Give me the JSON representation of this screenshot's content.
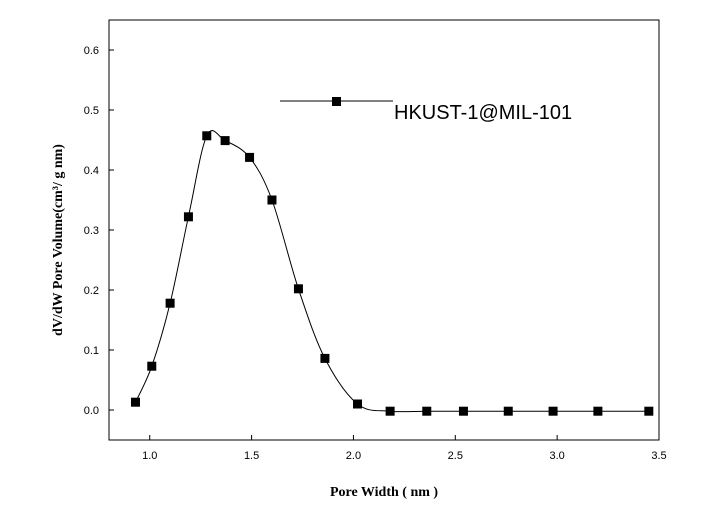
{
  "chart_data": {
    "type": "line",
    "title": "",
    "xlabel": "Pore Width ( nm )",
    "ylabel": "dV/dW Pore Volume(cm³/ g  nm)",
    "xlim": [
      0.8,
      3.5
    ],
    "ylim": [
      -0.05,
      0.65
    ],
    "x_ticks": [
      "1.0",
      "1.5",
      "2.0",
      "2.5",
      "3.0",
      "3.5"
    ],
    "x_tick_values": [
      1.0,
      1.5,
      2.0,
      2.5,
      3.0,
      3.5
    ],
    "y_ticks": [
      "0.0",
      "0.1",
      "0.2",
      "0.3",
      "0.4",
      "0.5",
      "0.6"
    ],
    "y_tick_values": [
      0.0,
      0.1,
      0.2,
      0.3,
      0.4,
      0.5,
      0.6
    ],
    "legend_position": "top-right",
    "grid": false,
    "series": [
      {
        "name": "HKUST-1@MIL-101",
        "color": "#000000",
        "marker": "square",
        "x": [
          0.93,
          1.01,
          1.1,
          1.19,
          1.28,
          1.37,
          1.49,
          1.6,
          1.73,
          1.86,
          2.02,
          2.18,
          2.36,
          2.54,
          2.76,
          2.98,
          3.2,
          3.45
        ],
        "y": [
          0.013,
          0.073,
          0.178,
          0.322,
          0.457,
          0.449,
          0.421,
          0.35,
          0.202,
          0.086,
          0.01,
          -0.002,
          -0.002,
          -0.002,
          -0.002,
          -0.002,
          -0.002,
          -0.002
        ]
      }
    ]
  }
}
